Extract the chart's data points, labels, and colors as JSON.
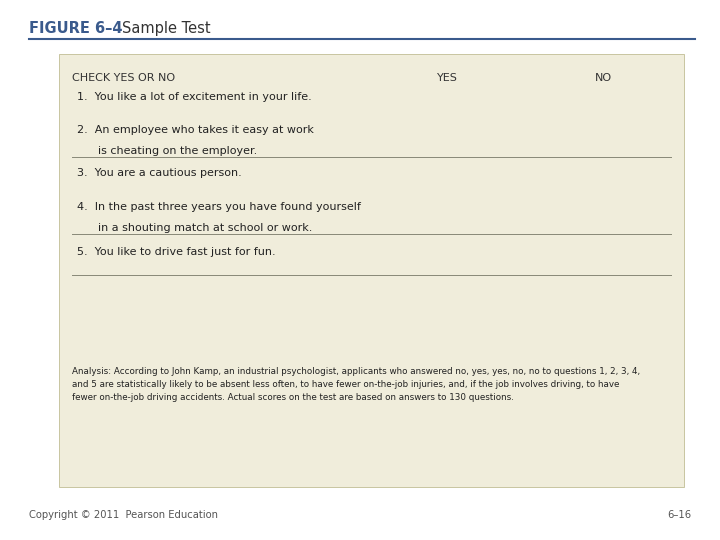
{
  "title_figure": "FIGURE 6–4",
  "title_label": "Sample Test",
  "title_color": "#3a5a8c",
  "title_sep_color": "#3a5a8c",
  "bg_color": "#f0eddb",
  "header": "CHECK YES OR NO",
  "col_yes": "YES",
  "col_no": "NO",
  "q1": "1.  You like a lot of excitement in your life.",
  "q2a": "2.  An employee who takes it easy at work",
  "q2b": "      is cheating on the employer.",
  "q3": "3.  You are a cautious person.",
  "q4a": "4.  In the past three years you have found yourself",
  "q4b": "      in a shouting match at school or work.",
  "q5": "5.  You like to drive fast just for fun.",
  "analysis": "Analysis: According to John Kamp, an industrial psychologist, applicants who answered no, yes, yes, no, no to questions 1, 2, 3, 4,\nand 5 are statistically likely to be absent less often, to have fewer on-the-job injuries, and, if the job involves driving, to have\nfewer on-the-job driving accidents. Actual scores on the test are based on answers to 130 questions.",
  "footer_left": "Copyright © 2011  Pearson Education",
  "footer_right": "6–16",
  "footer_color": "#555555",
  "page_bg": "#ffffff"
}
